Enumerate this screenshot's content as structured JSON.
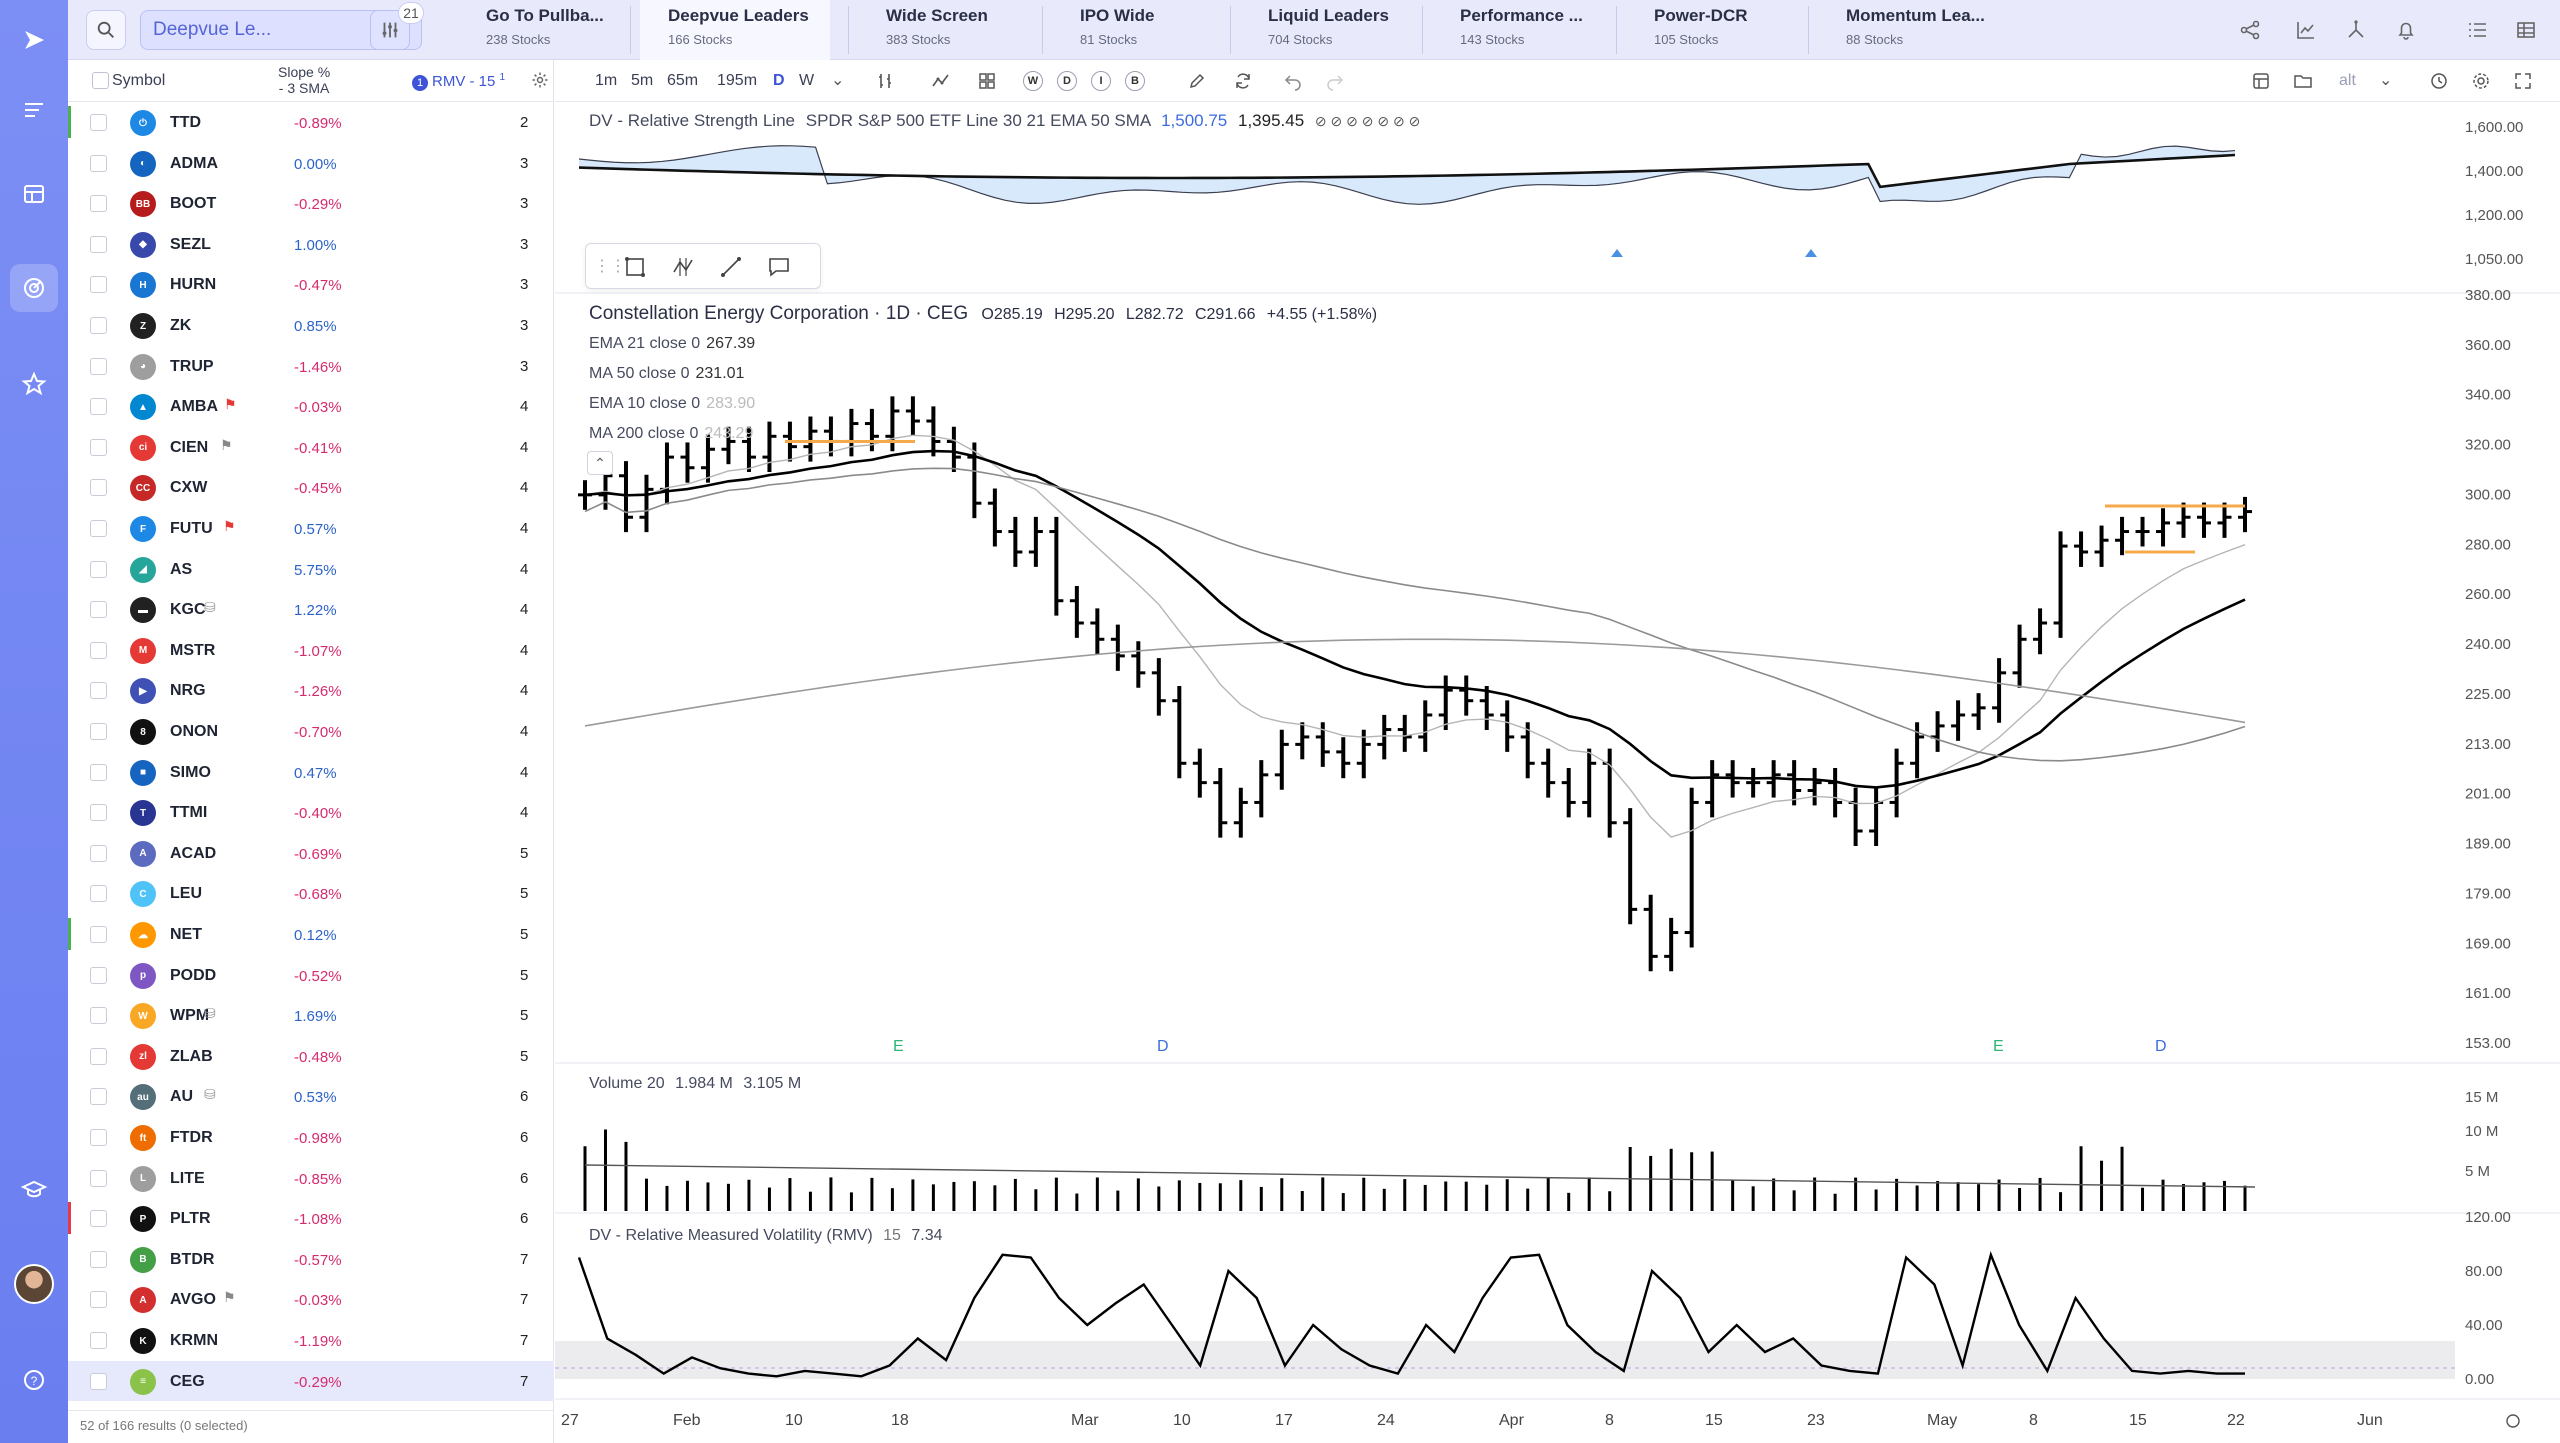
{
  "topbar": {
    "list_select": "Deepvue Le...",
    "filter_badge": "21",
    "tabs": [
      {
        "title": "Go To Pullba...",
        "sub": "238 Stocks"
      },
      {
        "title": "Deepvue Leaders",
        "sub": "166 Stocks"
      },
      {
        "title": "Wide Screen",
        "sub": "383 Stocks"
      },
      {
        "title": "IPO Wide",
        "sub": "81 Stocks"
      },
      {
        "title": "Liquid Leaders",
        "sub": "704 Stocks"
      },
      {
        "title": "Performance ...",
        "sub": "143 Stocks"
      },
      {
        "title": "Power-DCR",
        "sub": "105 Stocks"
      },
      {
        "title": "Momentum Lea...",
        "sub": "88 Stocks"
      }
    ]
  },
  "watchlist": {
    "header": {
      "symbol": "Symbol",
      "slope_1": "Slope %",
      "slope_2": "- 3 SMA",
      "rmv_num": "1",
      "rmv": "RMV - 15",
      "rmv_badge": "1"
    },
    "footer": "52 of 166 results (0 selected)",
    "rows": [
      {
        "t": "TTD",
        "p": "-0.89%",
        "r": "2",
        "mark": "#4caf50",
        "logo": "#1e88e5",
        "lt": "⏻"
      },
      {
        "t": "ADMA",
        "p": "0.00%",
        "r": "3",
        "logo": "#1565c0",
        "lt": "◐"
      },
      {
        "t": "BOOT",
        "p": "-0.29%",
        "r": "3",
        "logo": "#b71c1c",
        "lt": "BB"
      },
      {
        "t": "SEZL",
        "p": "1.00%",
        "r": "3",
        "logo": "#3949ab",
        "lt": "◆"
      },
      {
        "t": "HURN",
        "p": "-0.47%",
        "r": "3",
        "logo": "#1976d2",
        "lt": "H"
      },
      {
        "t": "ZK",
        "p": "0.85%",
        "r": "3",
        "logo": "#212121",
        "lt": "Z"
      },
      {
        "t": "TRUP",
        "p": "-1.46%",
        "r": "3",
        "logo": "#9e9e9e",
        "lt": "◕"
      },
      {
        "t": "AMBA",
        "p": "-0.03%",
        "r": "4",
        "logo": "#0288d1",
        "lt": "▲",
        "flag": "red"
      },
      {
        "t": "CIEN",
        "p": "-0.41%",
        "r": "4",
        "logo": "#e53935",
        "lt": "ci",
        "flag": "gray"
      },
      {
        "t": "CXW",
        "p": "-0.45%",
        "r": "4",
        "logo": "#c62828",
        "lt": "CC"
      },
      {
        "t": "FUTU",
        "p": "0.57%",
        "r": "4",
        "logo": "#1e88e5",
        "lt": "F",
        "flag": "red"
      },
      {
        "t": "AS",
        "p": "5.75%",
        "r": "4",
        "logo": "#26a69a",
        "lt": "◢"
      },
      {
        "t": "KGC",
        "p": "1.22%",
        "r": "4",
        "logo": "#212121",
        "lt": "▬",
        "db": true
      },
      {
        "t": "MSTR",
        "p": "-1.07%",
        "r": "4",
        "logo": "#e53935",
        "lt": "M"
      },
      {
        "t": "NRG",
        "p": "-1.26%",
        "r": "4",
        "logo": "#3f51b5",
        "lt": "▶"
      },
      {
        "t": "ONON",
        "p": "-0.70%",
        "r": "4",
        "logo": "#111",
        "lt": "8"
      },
      {
        "t": "SIMO",
        "p": "0.47%",
        "r": "4",
        "logo": "#1565c0",
        "lt": "■"
      },
      {
        "t": "TTMI",
        "p": "-0.40%",
        "r": "4",
        "logo": "#283593",
        "lt": "T"
      },
      {
        "t": "ACAD",
        "p": "-0.69%",
        "r": "5",
        "logo": "#5c6bc0",
        "lt": "A"
      },
      {
        "t": "LEU",
        "p": "-0.68%",
        "r": "5",
        "logo": "#4fc3f7",
        "lt": "C"
      },
      {
        "t": "NET",
        "p": "0.12%",
        "r": "5",
        "mark": "#4caf50",
        "logo": "#ff9800",
        "lt": "☁"
      },
      {
        "t": "PODD",
        "p": "-0.52%",
        "r": "5",
        "logo": "#7e57c2",
        "lt": "p"
      },
      {
        "t": "WPM",
        "p": "1.69%",
        "r": "5",
        "logo": "#f9a825",
        "lt": "W",
        "db": true
      },
      {
        "t": "ZLAB",
        "p": "-0.48%",
        "r": "5",
        "logo": "#e53935",
        "lt": "zl"
      },
      {
        "t": "AU",
        "p": "0.53%",
        "r": "6",
        "logo": "#546e7a",
        "lt": "au",
        "db": true
      },
      {
        "t": "FTDR",
        "p": "-0.98%",
        "r": "6",
        "logo": "#ef6c00",
        "lt": "ft"
      },
      {
        "t": "LITE",
        "p": "-0.85%",
        "r": "6",
        "logo": "#9e9e9e",
        "lt": "L"
      },
      {
        "t": "PLTR",
        "p": "-1.08%",
        "r": "6",
        "mark": "#e53946",
        "logo": "#111",
        "lt": "P"
      },
      {
        "t": "BTDR",
        "p": "-0.57%",
        "r": "7",
        "logo": "#43a047",
        "lt": "B"
      },
      {
        "t": "AVGO",
        "p": "-0.03%",
        "r": "7",
        "logo": "#d32f2f",
        "lt": "A",
        "flag": "gray"
      },
      {
        "t": "KRMN",
        "p": "-1.19%",
        "r": "7",
        "logo": "#111",
        "lt": "K"
      },
      {
        "t": "CEG",
        "p": "-0.29%",
        "r": "7",
        "logo": "#8bc34a",
        "lt": "≡",
        "sel": true
      }
    ]
  },
  "toolbar": {
    "timeframes": [
      "1m",
      "5m",
      "65m",
      "195m",
      "D",
      "W"
    ],
    "active_tf": "D",
    "period_circles": [
      "W",
      "D",
      "I",
      "B"
    ],
    "alt": "alt"
  },
  "rs_pane": {
    "label": "DV - Relative Strength Line",
    "desc": "SPDR S&P 500 ETF Line 30 21 EMA 50 SMA",
    "v1": "1,500.75",
    "v2": "1,395.45",
    "icons": "⊘ ⊘ ⊘ ⊘ ⊘ ⊘ ⊘",
    "axis": [
      "1,600.00",
      "1,400.00",
      "1,200.00",
      "1,050.00"
    ]
  },
  "price_pane": {
    "title": "Constellation Energy Corporation · 1D · CEG",
    "open": "O285.19",
    "high": "H295.20",
    "low": "L282.72",
    "close": "C291.66",
    "change": "+4.55 (+1.58%)",
    "studies": [
      {
        "name": "EMA 21 close 0",
        "value": "267.39"
      },
      {
        "name": "MA 50 close 0",
        "value": "231.01"
      },
      {
        "name": "EMA 10 close 0",
        "value": "283.90"
      },
      {
        "name": "MA 200 close 0",
        "value": "243.29"
      }
    ],
    "axis": [
      "380.00",
      "360.00",
      "340.00",
      "320.00",
      "300.00",
      "280.00",
      "260.00",
      "240.00",
      "225.00",
      "213.00",
      "201.00",
      "189.00",
      "179.00",
      "169.00",
      "161.00",
      "153.00"
    ],
    "events": [
      {
        "label": "E",
        "color": "#2bb673"
      },
      {
        "label": "D",
        "color": "#3d6be0"
      },
      {
        "label": "E",
        "color": "#2bb673"
      },
      {
        "label": "D",
        "color": "#3d6be0"
      }
    ]
  },
  "volume_pane": {
    "label": "Volume 20",
    "v1": "1.984 M",
    "v2": "3.105 M",
    "axis": [
      "15 M",
      "10 M",
      "5 M"
    ]
  },
  "rmv_pane": {
    "label": "DV - Relative Measured Volatility (RMV)",
    "period": "15",
    "value": "7.34",
    "axis": [
      "120.00",
      "80.00",
      "40.00",
      "0.00"
    ]
  },
  "x_axis": [
    "27",
    "Feb",
    "10",
    "18",
    "Mar",
    "10",
    "17",
    "24",
    "Apr",
    "8",
    "15",
    "23",
    "May",
    "8",
    "15",
    "22",
    "Jun"
  ],
  "chart_data": {
    "type": "ohlc",
    "symbol": "CEG",
    "title": "Constellation Energy Corporation · 1D · CEG",
    "close_series": [
      298,
      305,
      290,
      300,
      312,
      308,
      315,
      318,
      312,
      320,
      316,
      322,
      318,
      325,
      320,
      330,
      326,
      318,
      312,
      295,
      285,
      278,
      285,
      262,
      255,
      250,
      245,
      240,
      232,
      215,
      210,
      200,
      205,
      212,
      220,
      222,
      218,
      215,
      220,
      224,
      222,
      228,
      235,
      232,
      228,
      222,
      215,
      210,
      205,
      215,
      200,
      180,
      170,
      175,
      205,
      212,
      210,
      210,
      212,
      208,
      210,
      205,
      198,
      205,
      215,
      222,
      225,
      228,
      230,
      240,
      250,
      255,
      280,
      278,
      282,
      285,
      285,
      288,
      290,
      288,
      290,
      292
    ]
  }
}
